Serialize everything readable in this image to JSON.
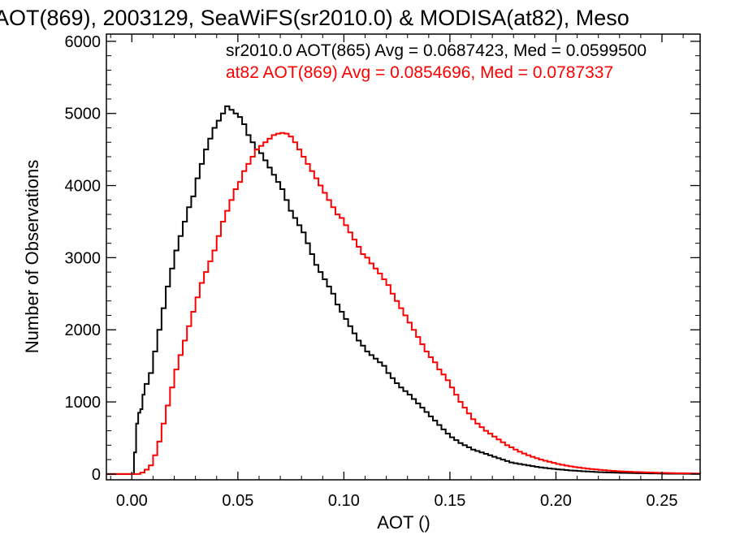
{
  "chart_data": {
    "type": "line",
    "step": true,
    "title": "AOT(869), 2003129, SeaWiFS(sr2010.0) & MODISA(at82), Meso",
    "xlabel": "AOT ()",
    "ylabel": "Number of Observations",
    "xlim": [
      -0.012,
      0.268
    ],
    "ylim": [
      -80,
      6100
    ],
    "x_ticks": [
      0.0,
      0.05,
      0.1,
      0.15,
      0.2,
      0.25
    ],
    "x_tick_labels": [
      "0.00",
      "0.05",
      "0.10",
      "0.15",
      "0.20",
      "0.25"
    ],
    "y_ticks": [
      0,
      1000,
      2000,
      3000,
      4000,
      5000,
      6000
    ],
    "y_tick_labels": [
      "0",
      "1000",
      "2000",
      "3000",
      "4000",
      "5000",
      "6000"
    ],
    "grid": false,
    "legend": "top-right",
    "series": [
      {
        "name": "sr2010.0 AOT(865) Avg = 0.0687423, Med = 0.0599500",
        "color": "#000000",
        "points": [
          [
            -0.012,
            0
          ],
          [
            0.0,
            0
          ],
          [
            0.001,
            300
          ],
          [
            0.002,
            700
          ],
          [
            0.003,
            850
          ],
          [
            0.004,
            900
          ],
          [
            0.005,
            1100
          ],
          [
            0.006,
            1250
          ],
          [
            0.008,
            1400
          ],
          [
            0.01,
            1700
          ],
          [
            0.012,
            2000
          ],
          [
            0.014,
            2300
          ],
          [
            0.016,
            2600
          ],
          [
            0.018,
            2850
          ],
          [
            0.02,
            3100
          ],
          [
            0.022,
            3300
          ],
          [
            0.024,
            3500
          ],
          [
            0.026,
            3700
          ],
          [
            0.028,
            3850
          ],
          [
            0.03,
            4100
          ],
          [
            0.032,
            4300
          ],
          [
            0.034,
            4500
          ],
          [
            0.036,
            4650
          ],
          [
            0.038,
            4800
          ],
          [
            0.04,
            4900
          ],
          [
            0.042,
            5000
          ],
          [
            0.044,
            5100
          ],
          [
            0.046,
            5050
          ],
          [
            0.048,
            5000
          ],
          [
            0.05,
            4950
          ],
          [
            0.052,
            4850
          ],
          [
            0.054,
            4700
          ],
          [
            0.056,
            4600
          ],
          [
            0.058,
            4500
          ],
          [
            0.06,
            4450
          ],
          [
            0.062,
            4350
          ],
          [
            0.064,
            4250
          ],
          [
            0.066,
            4150
          ],
          [
            0.068,
            4050
          ],
          [
            0.07,
            3950
          ],
          [
            0.072,
            3800
          ],
          [
            0.074,
            3650
          ],
          [
            0.076,
            3550
          ],
          [
            0.078,
            3450
          ],
          [
            0.08,
            3350
          ],
          [
            0.082,
            3200
          ],
          [
            0.084,
            3050
          ],
          [
            0.086,
            2900
          ],
          [
            0.088,
            2800
          ],
          [
            0.09,
            2700
          ],
          [
            0.092,
            2600
          ],
          [
            0.094,
            2500
          ],
          [
            0.096,
            2350
          ],
          [
            0.098,
            2250
          ],
          [
            0.1,
            2150
          ],
          [
            0.102,
            2050
          ],
          [
            0.104,
            1950
          ],
          [
            0.106,
            1850
          ],
          [
            0.108,
            1780
          ],
          [
            0.11,
            1700
          ],
          [
            0.112,
            1650
          ],
          [
            0.114,
            1600
          ],
          [
            0.116,
            1550
          ],
          [
            0.118,
            1500
          ],
          [
            0.12,
            1400
          ],
          [
            0.122,
            1330
          ],
          [
            0.124,
            1260
          ],
          [
            0.126,
            1200
          ],
          [
            0.128,
            1150
          ],
          [
            0.13,
            1100
          ],
          [
            0.132,
            1040
          ],
          [
            0.134,
            980
          ],
          [
            0.136,
            920
          ],
          [
            0.138,
            860
          ],
          [
            0.14,
            800
          ],
          [
            0.142,
            740
          ],
          [
            0.144,
            680
          ],
          [
            0.146,
            620
          ],
          [
            0.148,
            560
          ],
          [
            0.15,
            510
          ],
          [
            0.152,
            470
          ],
          [
            0.154,
            430
          ],
          [
            0.156,
            400
          ],
          [
            0.158,
            370
          ],
          [
            0.16,
            340
          ],
          [
            0.162,
            320
          ],
          [
            0.164,
            300
          ],
          [
            0.166,
            280
          ],
          [
            0.168,
            260
          ],
          [
            0.17,
            240
          ],
          [
            0.172,
            220
          ],
          [
            0.174,
            200
          ],
          [
            0.176,
            180
          ],
          [
            0.178,
            160
          ],
          [
            0.18,
            150
          ],
          [
            0.182,
            140
          ],
          [
            0.184,
            130
          ],
          [
            0.186,
            120
          ],
          [
            0.188,
            110
          ],
          [
            0.19,
            100
          ],
          [
            0.192,
            92
          ],
          [
            0.194,
            85
          ],
          [
            0.196,
            78
          ],
          [
            0.198,
            72
          ],
          [
            0.2,
            65
          ],
          [
            0.202,
            60
          ],
          [
            0.204,
            55
          ],
          [
            0.206,
            50
          ],
          [
            0.208,
            46
          ],
          [
            0.21,
            42
          ],
          [
            0.212,
            38
          ],
          [
            0.214,
            35
          ],
          [
            0.216,
            32
          ],
          [
            0.218,
            29
          ],
          [
            0.22,
            26
          ],
          [
            0.222,
            24
          ],
          [
            0.224,
            22
          ],
          [
            0.226,
            20
          ],
          [
            0.228,
            18
          ],
          [
            0.23,
            16
          ],
          [
            0.232,
            15
          ],
          [
            0.234,
            14
          ],
          [
            0.236,
            13
          ],
          [
            0.238,
            12
          ],
          [
            0.24,
            11
          ],
          [
            0.242,
            10
          ],
          [
            0.244,
            9
          ],
          [
            0.246,
            8
          ],
          [
            0.248,
            7
          ],
          [
            0.25,
            6
          ],
          [
            0.252,
            5
          ],
          [
            0.254,
            5
          ],
          [
            0.256,
            4
          ],
          [
            0.258,
            4
          ],
          [
            0.26,
            3
          ],
          [
            0.262,
            3
          ],
          [
            0.264,
            2
          ],
          [
            0.266,
            2
          ],
          [
            0.268,
            2
          ]
        ]
      },
      {
        "name": "at82 AOT(869) Avg = 0.0854696, Med = 0.0787337",
        "color": "#ff0000",
        "points": [
          [
            -0.012,
            0
          ],
          [
            0.003,
            0
          ],
          [
            0.004,
            20
          ],
          [
            0.006,
            60
          ],
          [
            0.008,
            120
          ],
          [
            0.01,
            260
          ],
          [
            0.012,
            450
          ],
          [
            0.014,
            700
          ],
          [
            0.016,
            950
          ],
          [
            0.018,
            1200
          ],
          [
            0.02,
            1450
          ],
          [
            0.022,
            1650
          ],
          [
            0.024,
            1850
          ],
          [
            0.026,
            2050
          ],
          [
            0.028,
            2250
          ],
          [
            0.03,
            2450
          ],
          [
            0.032,
            2650
          ],
          [
            0.034,
            2800
          ],
          [
            0.036,
            2950
          ],
          [
            0.038,
            3100
          ],
          [
            0.04,
            3300
          ],
          [
            0.042,
            3500
          ],
          [
            0.044,
            3650
          ],
          [
            0.046,
            3800
          ],
          [
            0.048,
            3950
          ],
          [
            0.05,
            4050
          ],
          [
            0.052,
            4200
          ],
          [
            0.054,
            4300
          ],
          [
            0.056,
            4400
          ],
          [
            0.058,
            4500
          ],
          [
            0.06,
            4550
          ],
          [
            0.062,
            4600
          ],
          [
            0.064,
            4650
          ],
          [
            0.066,
            4700
          ],
          [
            0.068,
            4720
          ],
          [
            0.07,
            4730
          ],
          [
            0.072,
            4720
          ],
          [
            0.074,
            4680
          ],
          [
            0.076,
            4600
          ],
          [
            0.078,
            4500
          ],
          [
            0.08,
            4400
          ],
          [
            0.082,
            4300
          ],
          [
            0.084,
            4200
          ],
          [
            0.086,
            4100
          ],
          [
            0.088,
            4000
          ],
          [
            0.09,
            3900
          ],
          [
            0.092,
            3800
          ],
          [
            0.094,
            3700
          ],
          [
            0.096,
            3600
          ],
          [
            0.098,
            3550
          ],
          [
            0.1,
            3450
          ],
          [
            0.102,
            3350
          ],
          [
            0.104,
            3250
          ],
          [
            0.106,
            3150
          ],
          [
            0.108,
            3050
          ],
          [
            0.11,
            3000
          ],
          [
            0.112,
            2920
          ],
          [
            0.114,
            2850
          ],
          [
            0.116,
            2780
          ],
          [
            0.118,
            2700
          ],
          [
            0.12,
            2620
          ],
          [
            0.122,
            2500
          ],
          [
            0.124,
            2400
          ],
          [
            0.126,
            2300
          ],
          [
            0.128,
            2200
          ],
          [
            0.13,
            2100
          ],
          [
            0.132,
            2000
          ],
          [
            0.134,
            1900
          ],
          [
            0.136,
            1800
          ],
          [
            0.138,
            1700
          ],
          [
            0.14,
            1620
          ],
          [
            0.142,
            1550
          ],
          [
            0.144,
            1450
          ],
          [
            0.146,
            1380
          ],
          [
            0.148,
            1300
          ],
          [
            0.15,
            1200
          ],
          [
            0.152,
            1100
          ],
          [
            0.154,
            1000
          ],
          [
            0.156,
            920
          ],
          [
            0.158,
            840
          ],
          [
            0.16,
            760
          ],
          [
            0.162,
            700
          ],
          [
            0.164,
            650
          ],
          [
            0.166,
            600
          ],
          [
            0.168,
            560
          ],
          [
            0.17,
            520
          ],
          [
            0.172,
            480
          ],
          [
            0.174,
            440
          ],
          [
            0.176,
            400
          ],
          [
            0.178,
            370
          ],
          [
            0.18,
            340
          ],
          [
            0.182,
            310
          ],
          [
            0.184,
            285
          ],
          [
            0.186,
            260
          ],
          [
            0.188,
            240
          ],
          [
            0.19,
            220
          ],
          [
            0.192,
            200
          ],
          [
            0.194,
            185
          ],
          [
            0.196,
            170
          ],
          [
            0.198,
            155
          ],
          [
            0.2,
            140
          ],
          [
            0.202,
            128
          ],
          [
            0.204,
            117
          ],
          [
            0.206,
            107
          ],
          [
            0.208,
            98
          ],
          [
            0.21,
            90
          ],
          [
            0.212,
            82
          ],
          [
            0.214,
            75
          ],
          [
            0.216,
            69
          ],
          [
            0.218,
            63
          ],
          [
            0.22,
            58
          ],
          [
            0.222,
            53
          ],
          [
            0.224,
            48
          ],
          [
            0.226,
            44
          ],
          [
            0.228,
            40
          ],
          [
            0.23,
            37
          ],
          [
            0.232,
            34
          ],
          [
            0.234,
            31
          ],
          [
            0.236,
            29
          ],
          [
            0.238,
            27
          ],
          [
            0.24,
            25
          ],
          [
            0.242,
            23
          ],
          [
            0.244,
            21
          ],
          [
            0.246,
            19
          ],
          [
            0.248,
            17
          ],
          [
            0.25,
            16
          ],
          [
            0.252,
            14
          ],
          [
            0.254,
            13
          ],
          [
            0.256,
            12
          ],
          [
            0.258,
            11
          ],
          [
            0.26,
            10
          ],
          [
            0.262,
            9
          ],
          [
            0.264,
            8
          ],
          [
            0.266,
            7
          ],
          [
            0.268,
            6
          ]
        ]
      }
    ]
  }
}
